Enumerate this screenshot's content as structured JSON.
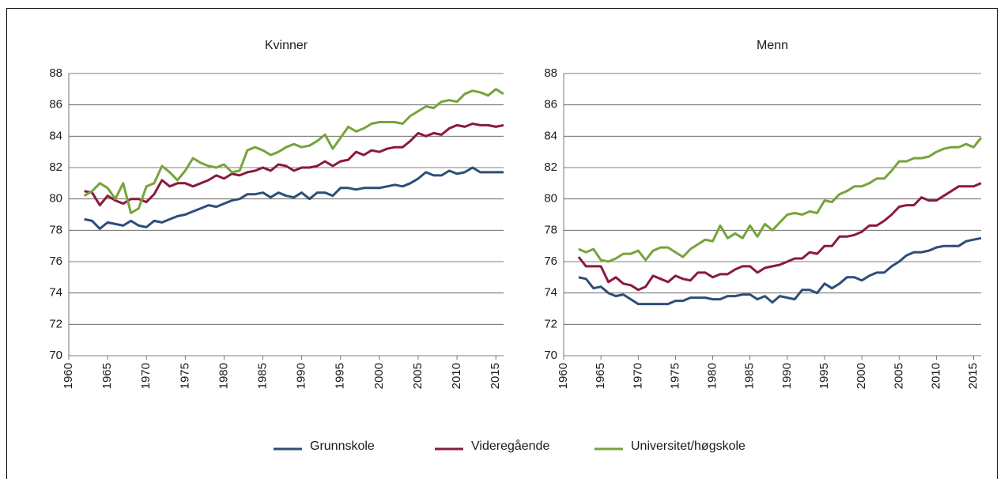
{
  "chart_data": [
    {
      "type": "line",
      "title": "Kvinner",
      "x": [
        1962,
        1963,
        1964,
        1965,
        1966,
        1967,
        1968,
        1969,
        1970,
        1971,
        1972,
        1973,
        1974,
        1975,
        1976,
        1977,
        1978,
        1979,
        1980,
        1981,
        1982,
        1983,
        1984,
        1985,
        1986,
        1987,
        1988,
        1989,
        1990,
        1991,
        1992,
        1993,
        1994,
        1995,
        1996,
        1997,
        1998,
        1999,
        2000,
        2001,
        2002,
        2003,
        2004,
        2005,
        2006,
        2007,
        2008,
        2009,
        2010,
        2011,
        2012,
        2013,
        2014,
        2015,
        2016
      ],
      "xlim": [
        1960,
        2016
      ],
      "xticks": [
        1960,
        1965,
        1970,
        1975,
        1980,
        1985,
        1990,
        1995,
        2000,
        2005,
        2010,
        2015
      ],
      "ylim": [
        70,
        88
      ],
      "yticks": [
        70,
        72,
        74,
        76,
        78,
        80,
        82,
        84,
        86,
        88
      ],
      "grid": true,
      "series": [
        {
          "name": "Grunnskole",
          "color": "#2e4d7a",
          "values": [
            78.7,
            78.6,
            78.1,
            78.5,
            78.4,
            78.3,
            78.6,
            78.3,
            78.2,
            78.6,
            78.5,
            78.7,
            78.9,
            79.0,
            79.2,
            79.4,
            79.6,
            79.5,
            79.7,
            79.9,
            80.0,
            80.3,
            80.3,
            80.4,
            80.1,
            80.4,
            80.2,
            80.1,
            80.4,
            80.0,
            80.4,
            80.4,
            80.2,
            80.7,
            80.7,
            80.6,
            80.7,
            80.7,
            80.7,
            80.8,
            80.9,
            80.8,
            81.0,
            81.3,
            81.7,
            81.5,
            81.5,
            81.8,
            81.6,
            81.7,
            82.0,
            81.7,
            81.7,
            81.7,
            81.7
          ]
        },
        {
          "name": "Videregående",
          "color": "#8b1a3d",
          "values": [
            80.5,
            80.4,
            79.6,
            80.2,
            79.9,
            79.7,
            80.0,
            80.0,
            79.8,
            80.3,
            81.2,
            80.8,
            81.0,
            81.0,
            80.8,
            81.0,
            81.2,
            81.5,
            81.3,
            81.6,
            81.5,
            81.7,
            81.8,
            82.0,
            81.8,
            82.2,
            82.1,
            81.8,
            82.0,
            82.0,
            82.1,
            82.4,
            82.1,
            82.4,
            82.5,
            83.0,
            82.8,
            83.1,
            83.0,
            83.2,
            83.3,
            83.3,
            83.7,
            84.2,
            84.0,
            84.2,
            84.1,
            84.5,
            84.7,
            84.6,
            84.8,
            84.7,
            84.7,
            84.6,
            84.7
          ]
        },
        {
          "name": "Universitet/høgskole",
          "color": "#77a33b",
          "values": [
            80.2,
            80.5,
            81.0,
            80.7,
            80.0,
            81.0,
            79.1,
            79.4,
            80.8,
            81.0,
            82.1,
            81.7,
            81.2,
            81.8,
            82.6,
            82.3,
            82.1,
            82.0,
            82.2,
            81.7,
            81.8,
            83.1,
            83.3,
            83.1,
            82.8,
            83.0,
            83.3,
            83.5,
            83.3,
            83.4,
            83.7,
            84.1,
            83.2,
            83.9,
            84.6,
            84.3,
            84.5,
            84.8,
            84.9,
            84.9,
            84.9,
            84.8,
            85.3,
            85.6,
            85.9,
            85.8,
            86.2,
            86.3,
            86.2,
            86.7,
            86.9,
            86.8,
            86.6,
            87.0,
            86.7
          ]
        }
      ]
    },
    {
      "type": "line",
      "title": "Menn",
      "x": [
        1962,
        1963,
        1964,
        1965,
        1966,
        1967,
        1968,
        1969,
        1970,
        1971,
        1972,
        1973,
        1974,
        1975,
        1976,
        1977,
        1978,
        1979,
        1980,
        1981,
        1982,
        1983,
        1984,
        1985,
        1986,
        1987,
        1988,
        1989,
        1990,
        1991,
        1992,
        1993,
        1994,
        1995,
        1996,
        1997,
        1998,
        1999,
        2000,
        2001,
        2002,
        2003,
        2004,
        2005,
        2006,
        2007,
        2008,
        2009,
        2010,
        2011,
        2012,
        2013,
        2014,
        2015,
        2016
      ],
      "xlim": [
        1960,
        2016
      ],
      "xticks": [
        1960,
        1965,
        1970,
        1975,
        1980,
        1985,
        1990,
        1995,
        2000,
        2005,
        2010,
        2015
      ],
      "ylim": [
        70,
        88
      ],
      "yticks": [
        70,
        72,
        74,
        76,
        78,
        80,
        82,
        84,
        86,
        88
      ],
      "grid": true,
      "series": [
        {
          "values": [
            75.0,
            74.9,
            74.3,
            74.4,
            74.0,
            73.8,
            73.9,
            73.6,
            73.3,
            73.3,
            73.3,
            73.3,
            73.3,
            73.5,
            73.5,
            73.7,
            73.7,
            73.7,
            73.6,
            73.6,
            73.8,
            73.8,
            73.9,
            73.9,
            73.6,
            73.8,
            73.4,
            73.8,
            73.7,
            73.6,
            74.2,
            74.2,
            74.0,
            74.6,
            74.3,
            74.6,
            75.0,
            75.0,
            74.8,
            75.1,
            75.3,
            75.3,
            75.7,
            76.0,
            76.4,
            76.6,
            76.6,
            76.7,
            76.9,
            77.0,
            77.0,
            77.0,
            77.3,
            77.4,
            77.5
          ]
        },
        {
          "values": [
            76.3,
            75.7,
            75.7,
            75.7,
            74.7,
            75.0,
            74.6,
            74.5,
            74.2,
            74.4,
            75.1,
            74.9,
            74.7,
            75.1,
            74.9,
            74.8,
            75.3,
            75.3,
            75.0,
            75.2,
            75.2,
            75.5,
            75.7,
            75.7,
            75.3,
            75.6,
            75.7,
            75.8,
            76.0,
            76.2,
            76.2,
            76.6,
            76.5,
            77.0,
            77.0,
            77.6,
            77.6,
            77.7,
            77.9,
            78.3,
            78.3,
            78.6,
            79.0,
            79.5,
            79.6,
            79.6,
            80.1,
            79.9,
            79.9,
            80.2,
            80.5,
            80.8,
            80.8,
            80.8,
            81.0
          ]
        },
        {
          "values": [
            76.8,
            76.6,
            76.8,
            76.1,
            76.0,
            76.2,
            76.5,
            76.5,
            76.7,
            76.1,
            76.7,
            76.9,
            76.9,
            76.6,
            76.3,
            76.8,
            77.1,
            77.4,
            77.3,
            78.3,
            77.5,
            77.8,
            77.5,
            78.3,
            77.6,
            78.4,
            78.0,
            78.5,
            79.0,
            79.1,
            79.0,
            79.2,
            79.1,
            79.9,
            79.8,
            80.3,
            80.5,
            80.8,
            80.8,
            81.0,
            81.3,
            81.3,
            81.8,
            82.4,
            82.4,
            82.6,
            82.6,
            82.7,
            83.0,
            83.2,
            83.3,
            83.3,
            83.5,
            83.3,
            83.9
          ]
        }
      ]
    }
  ]
}
